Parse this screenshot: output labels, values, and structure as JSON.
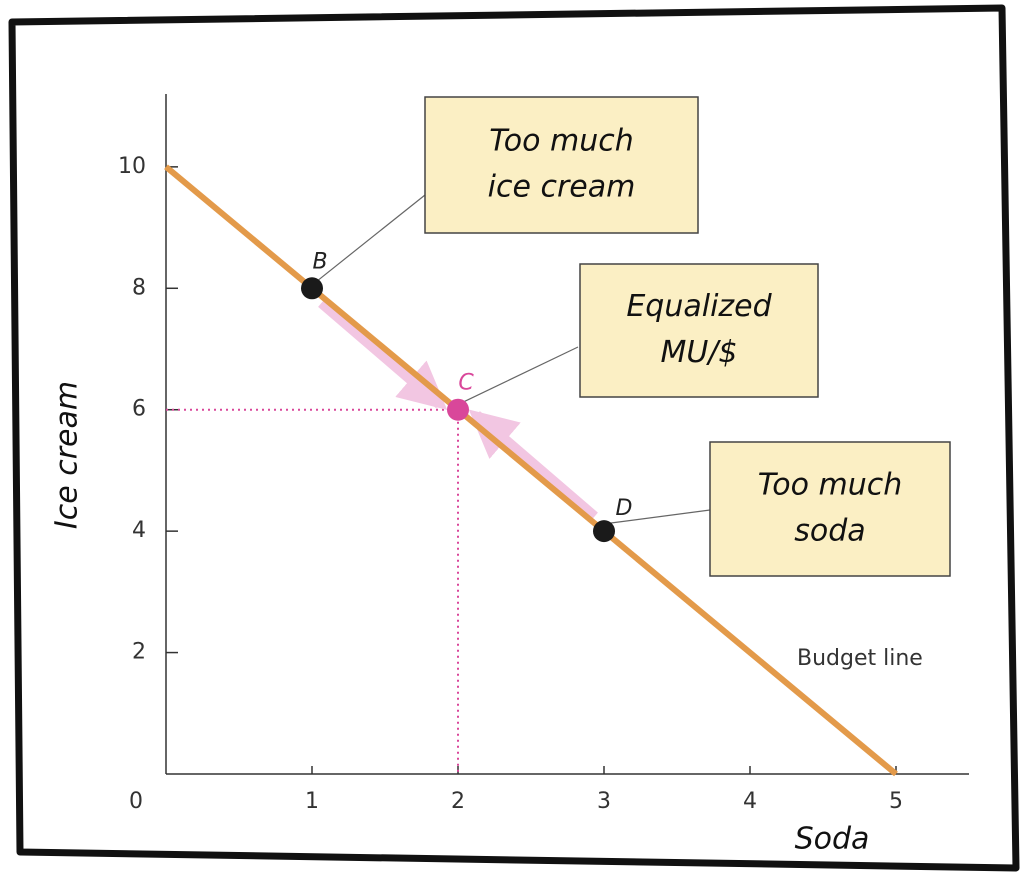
{
  "chart_data": {
    "type": "line",
    "x_label": "Soda",
    "y_label": "Ice cream",
    "xlim": [
      0,
      5.5
    ],
    "ylim": [
      0,
      11.2
    ],
    "xticks": [
      0,
      1,
      2,
      3,
      4,
      5
    ],
    "yticks": [
      2,
      4,
      6,
      8,
      10
    ],
    "series": [
      {
        "name": "Budget line",
        "color": "#e39a4a",
        "x": [
          0,
          5
        ],
        "values": [
          10,
          0
        ]
      }
    ],
    "points": {
      "labels": [
        "B",
        "C",
        "D"
      ],
      "x": [
        1,
        2,
        3
      ],
      "values": [
        8,
        6,
        4
      ],
      "colors": [
        "#1a1a1a",
        "#d9479a",
        "#1a1a1a"
      ]
    },
    "annotations": [
      {
        "lines": [
          "Too much",
          "ice cream"
        ]
      },
      {
        "lines": [
          "Equalized",
          "MU/$"
        ]
      },
      {
        "lines": [
          "Too much",
          "soda"
        ]
      }
    ]
  }
}
